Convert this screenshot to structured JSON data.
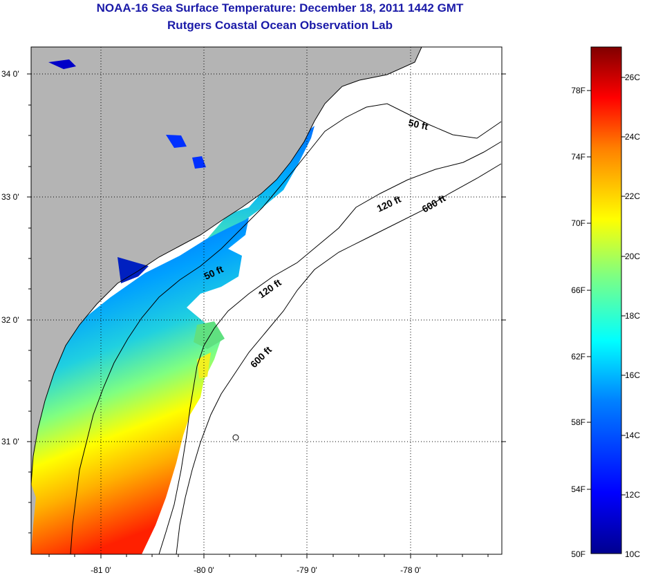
{
  "title": "NOAA-16 Sea Surface Temperature:  December 18, 2011 1442 GMT",
  "subtitle": "Rutgers Coastal Ocean Observation Lab",
  "colors": {
    "land": "#b4b4b4",
    "no_data": "#ffffff",
    "title": "#1a1aa8"
  },
  "map": {
    "lat_ticks": [
      "34 0'",
      "33 0'",
      "32 0'",
      "31 0'"
    ],
    "lon_ticks": [
      "-81 0'",
      "-80 0'",
      "-79 0'",
      "-78 0'"
    ],
    "isobath_labels": [
      "50 ft",
      "120 ft",
      "600 ft",
      "50 ft",
      "120 ft",
      "600 ft"
    ]
  },
  "colorbar": {
    "fahrenheit_labels": [
      "78F",
      "74F",
      "70F",
      "66F",
      "62F",
      "58F",
      "54F",
      "50F"
    ],
    "celsius_labels": [
      "26C",
      "24C",
      "22C",
      "20C",
      "18C",
      "16C",
      "14C",
      "12C",
      "10C"
    ],
    "scale": [
      "#00008f",
      "#0000ff",
      "#0080ff",
      "#00ffff",
      "#80ff80",
      "#ffff00",
      "#ff8000",
      "#ff0000",
      "#800000"
    ]
  }
}
